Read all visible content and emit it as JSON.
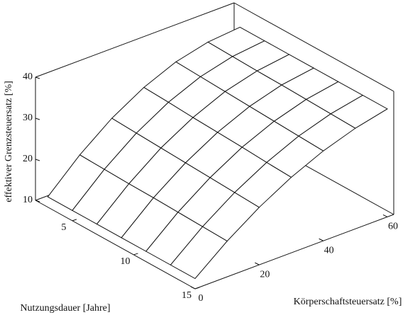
{
  "chart_data": {
    "type": "surface",
    "x_label": "Körperschaftsteuersatz [%]",
    "y_label": "Nutzungsdauer [Jahre]",
    "z_label": "effektiver Grenzsteuersatz [%]",
    "x": [
      0,
      10,
      20,
      30,
      40,
      50,
      60
    ],
    "y": [
      3,
      5,
      7,
      9,
      11,
      13,
      15
    ],
    "z": [
      [
        12.5,
        19.8,
        25.8,
        30.4,
        33.7,
        35.6,
        36.3
      ],
      [
        12.5,
        19.6,
        25.5,
        30.1,
        33.4,
        35.4,
        36.3
      ],
      [
        12.5,
        19.4,
        25.2,
        29.7,
        33.1,
        35.2,
        36.3
      ],
      [
        12.5,
        19.3,
        24.9,
        29.4,
        32.8,
        35.1,
        36.3
      ],
      [
        12.5,
        19.1,
        24.6,
        29.1,
        32.5,
        34.9,
        36.3
      ],
      [
        12.5,
        18.9,
        24.3,
        28.7,
        32.2,
        34.7,
        36.3
      ],
      [
        12.5,
        18.7,
        24.0,
        28.4,
        31.9,
        34.5,
        36.3
      ]
    ],
    "xlim": [
      0,
      62
    ],
    "ylim": [
      2,
      15
    ],
    "zlim": [
      10,
      40
    ],
    "xticks": [
      0,
      20,
      40,
      60
    ],
    "yticks": [
      5,
      10,
      15
    ],
    "zticks": [
      10,
      20,
      30,
      40
    ],
    "color": "#ffffff",
    "line_color": "#111111"
  }
}
